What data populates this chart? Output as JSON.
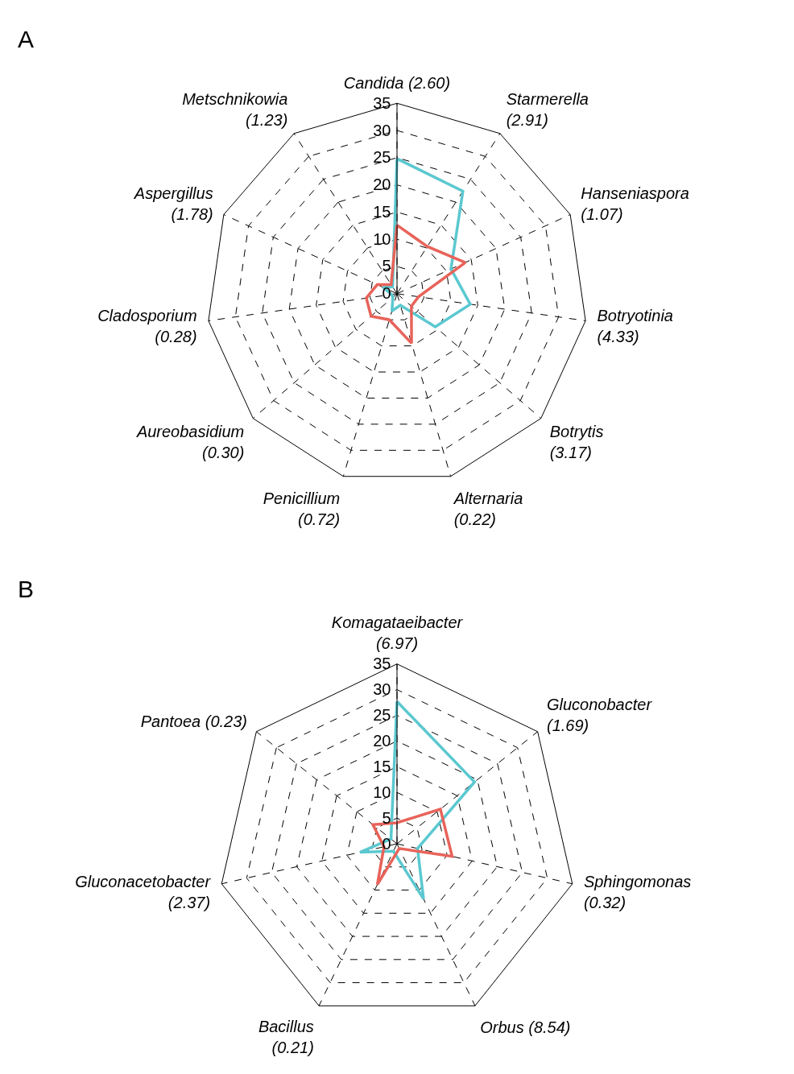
{
  "chart_data": [
    {
      "type": "radar",
      "annotations": [
        "A"
      ],
      "categories": [
        "Candida (2.60)",
        "Starmerella (2.91)",
        "Hanseniaspora (1.07)",
        "Botryotinia (4.33)",
        "Botrytis (3.17)",
        "Alternaria (0.22)",
        "Penicillium (0.72)",
        "Aureobasidium (0.30)",
        "Cladosporium (0.28)",
        "Aspergillus (1.78)",
        "Metschnikowia (1.23)"
      ],
      "series": [
        {
          "color": "#5bc8d0",
          "values": [
            24.8,
            22.4,
            10.9,
            13.6,
            9.3,
            2.2,
            3.3,
            1,
            1,
            2.8,
            1.5
          ]
        },
        {
          "color": "#e8635a",
          "values": [
            12.6,
            10.3,
            13.8,
            4,
            3.5,
            9.5,
            5,
            6.3,
            5.7,
            4,
            2
          ]
        }
      ],
      "ylim": [
        0,
        35
      ],
      "yticks": [
        0,
        5,
        10,
        15,
        20,
        25,
        30,
        35
      ],
      "grid": true,
      "line_style": "solid",
      "marker": "none"
    },
    {
      "type": "radar",
      "annotations": [
        "B"
      ],
      "categories": [
        "Komagataeibacter (6.97)",
        "Gluconobacter (1.69)",
        "Sphingomonas (0.32)",
        "Orbus (8.54)",
        "Bacillus (0.21)",
        "Gluconacetobacter (2.37)",
        "Pantoea (0.23)"
      ],
      "series": [
        {
          "color": "#5bc8d0",
          "values": [
            27.7,
            19.3,
            4.1,
            11.9,
            1.6,
            7.4,
            1.5
          ]
        },
        {
          "color": "#e8635a",
          "values": [
            4.1,
            10.8,
            11,
            1,
            8.8,
            2.6,
            6
          ]
        }
      ],
      "ylim": [
        0,
        35
      ],
      "yticks": [
        0,
        5,
        10,
        15,
        20,
        25,
        30,
        35
      ],
      "grid": true,
      "line_style": "solid",
      "marker": "none"
    }
  ]
}
